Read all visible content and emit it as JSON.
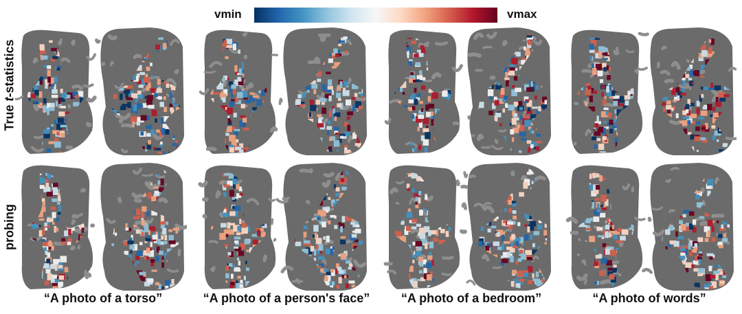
{
  "colorbar": {
    "min_label": "vmin",
    "max_label": "vmax",
    "colormap": "RdBu_r",
    "colors": [
      "#053061",
      "#2166ac",
      "#4393c3",
      "#92c5de",
      "#d1e5f0",
      "#f7f7f7",
      "#fddbc7",
      "#f4a582",
      "#d6604d",
      "#b2182b",
      "#67001f"
    ]
  },
  "rows": [
    {
      "label_prefix": "True ",
      "label_italic": "t",
      "label_suffix": "-statistics"
    },
    {
      "label": "probing"
    }
  ],
  "columns": [
    {
      "caption": "“A photo of a torso”"
    },
    {
      "caption": "“A photo of a person's face”"
    },
    {
      "caption": "“A photo of a bedroom”"
    },
    {
      "caption": "“A photo of words”"
    }
  ],
  "brain_style": {
    "hemisphere_color": "#6b6b6b",
    "sulci_color": "#8e8e8e",
    "map_opacity": 0.92
  }
}
